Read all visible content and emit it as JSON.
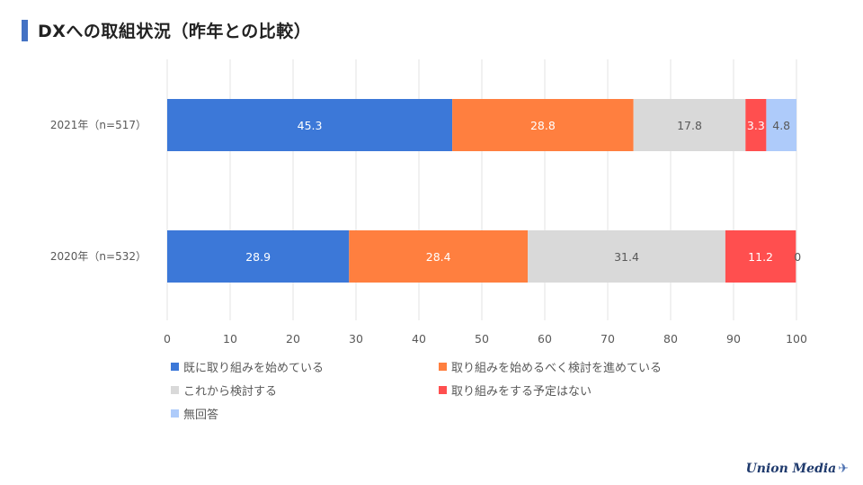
{
  "page": {
    "title": "DXへの取組状況（昨年との比較）",
    "accent_color": "#4472C4",
    "logo_text": "Union Media"
  },
  "chart_data": {
    "type": "bar",
    "orientation": "horizontal",
    "stacked": true,
    "categories": [
      "2021年（n=517）",
      "2020年（n=532）"
    ],
    "series": [
      {
        "name": "既に取り組みを始めている",
        "color": "#3C78D8",
        "label_color": "#ffffff",
        "values": [
          45.3,
          28.9
        ]
      },
      {
        "name": "取り組みを始めるべく検討を進めている",
        "color": "#FF7F3F",
        "label_color": "#ffffff",
        "values": [
          28.8,
          28.4
        ]
      },
      {
        "name": "これから検討する",
        "color": "#D9D9D9",
        "label_color": "#595959",
        "values": [
          17.8,
          31.4
        ]
      },
      {
        "name": "取り組みをする予定はない",
        "color": "#FF4F4F",
        "label_color": "#ffffff",
        "values": [
          3.3,
          11.2
        ]
      },
      {
        "name": "無回答",
        "color": "#AECBFA",
        "label_color": "#595959",
        "values": [
          4.8,
          0
        ]
      }
    ],
    "xlim": [
      0,
      100
    ],
    "xticks": [
      0,
      10,
      20,
      30,
      40,
      50,
      60,
      70,
      80,
      90,
      100
    ],
    "grid": true,
    "legend_position": "bottom"
  }
}
